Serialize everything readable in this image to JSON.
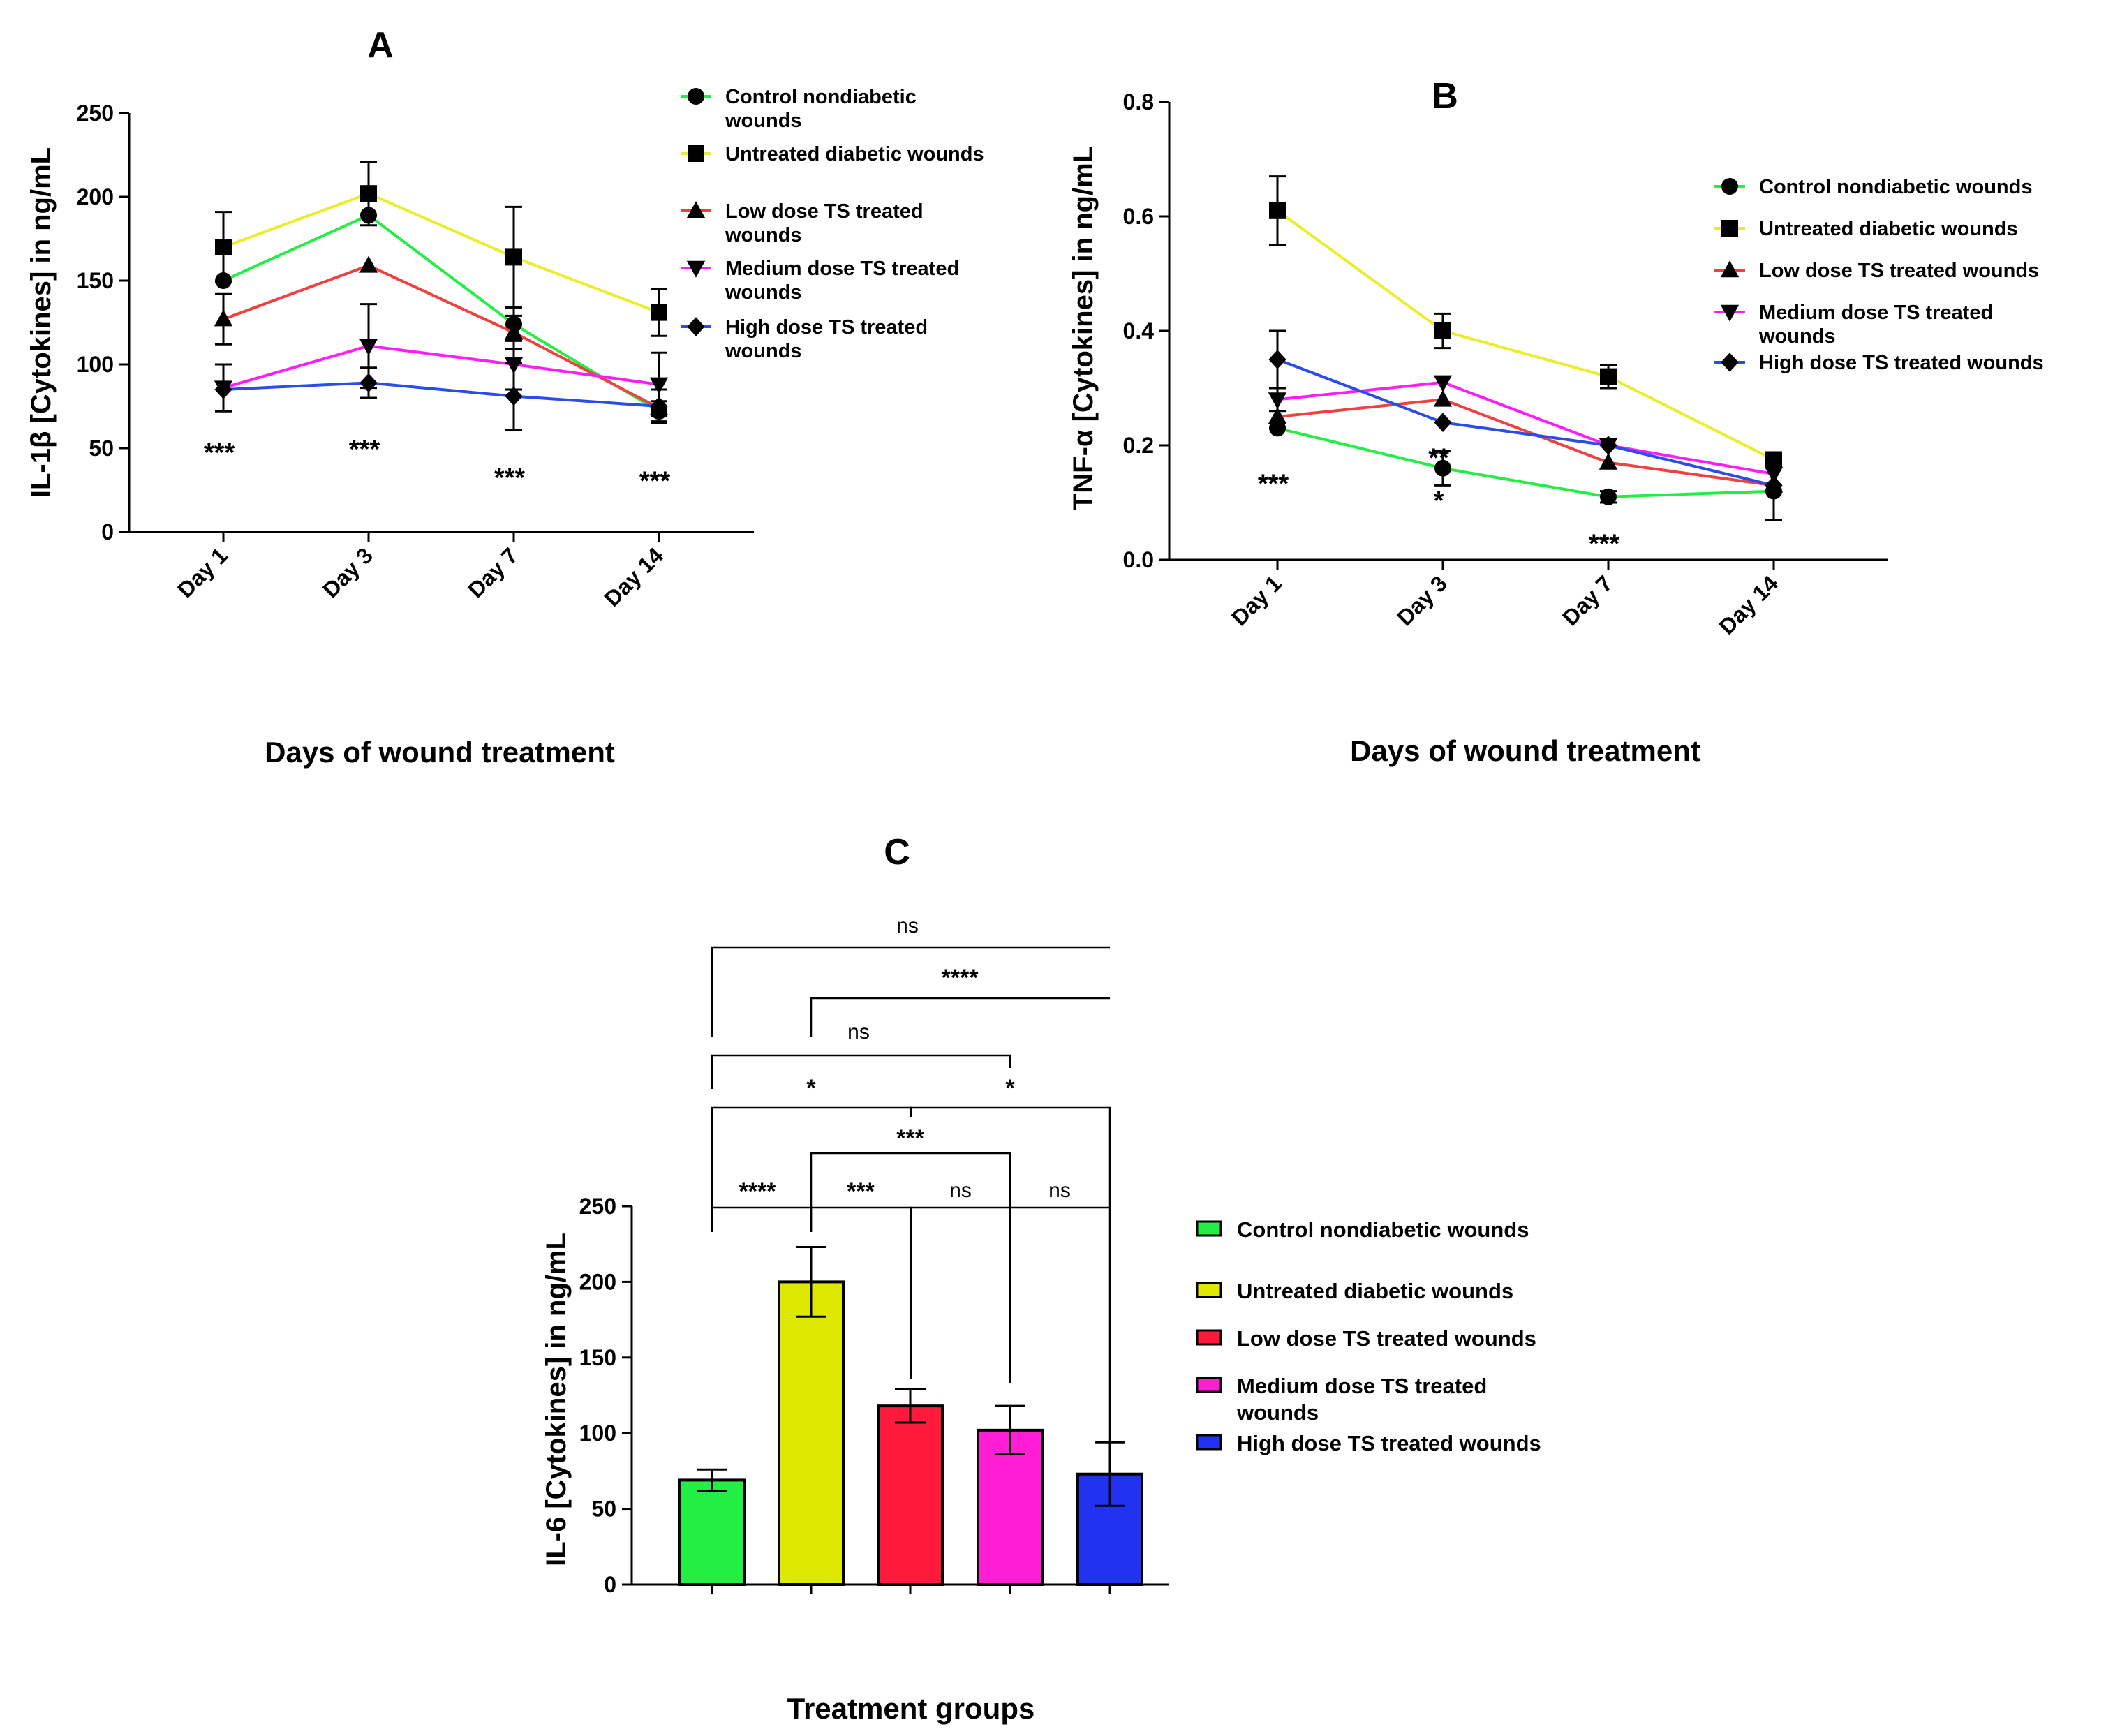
{
  "chart_data": [
    {
      "panel": "A",
      "type": "line",
      "xlabel": "Days of wound treatment",
      "ylabel": "IL-1β [Cytokines] in ng/mL",
      "ylim": [
        0,
        250
      ],
      "yticks": [
        "0",
        "50",
        "100",
        "150",
        "200",
        "250"
      ],
      "categories": [
        "Day 1",
        "Day 3",
        "Day 7",
        "Day 14"
      ],
      "series": [
        {
          "name": "Control nondiabetic wounds",
          "legend_lines": [
            "Control nondiabetic",
            "wounds"
          ],
          "color": "#22ee44",
          "marker": "circle",
          "values": [
            150,
            189,
            124,
            72
          ],
          "errors": [
            0,
            0,
            10,
            6
          ]
        },
        {
          "name": "Untreated diabetic wounds",
          "legend_lines": [
            "Untreated diabetic wounds"
          ],
          "color": "#eaed2a",
          "marker": "square",
          "values": [
            170,
            202,
            164,
            131
          ],
          "errors": [
            21,
            19,
            30,
            14
          ]
        },
        {
          "name": "Low dose TS treated wounds",
          "legend_lines": [
            "Low dose TS treated",
            "wounds"
          ],
          "color": "#f04040",
          "marker": "triangle",
          "values": [
            127,
            159,
            119,
            74
          ],
          "errors": [
            15,
            0,
            10,
            0
          ]
        },
        {
          "name": "Medium dose TS treated wounds",
          "legend_lines": [
            "Medium dose TS treated",
            "wounds"
          ],
          "color": "#ff1dff",
          "marker": "triangle-down",
          "values": [
            86,
            111,
            100,
            88
          ],
          "errors": [
            14,
            25,
            15,
            19
          ]
        },
        {
          "name": "High dose TS treated wounds",
          "legend_lines": [
            "High dose TS treated",
            "wounds"
          ],
          "color": "#2a4de8",
          "marker": "diamond",
          "values": [
            85,
            89,
            81,
            75
          ],
          "errors": [
            0,
            9,
            20,
            10
          ]
        }
      ],
      "annotations": [
        {
          "text": "***",
          "x": "Day 1",
          "y": 48
        },
        {
          "text": "***",
          "x": "Day 3",
          "y": 50
        },
        {
          "text": "***",
          "x": "Day 7",
          "y": 33
        },
        {
          "text": "***",
          "x": "Day 14",
          "y": 31
        }
      ]
    },
    {
      "panel": "B",
      "type": "line",
      "xlabel": "Days of wound treatment",
      "ylabel": "TNF-α [Cytokines] in ng/mL",
      "ylim": [
        0,
        0.8
      ],
      "yticks": [
        "0.0",
        "0.2",
        "0.4",
        "0.6",
        "0.8"
      ],
      "categories": [
        "Day 1",
        "Day 3",
        "Day 7",
        "Day 14"
      ],
      "series": [
        {
          "name": "Control nondiabetic wounds",
          "legend_lines": [
            "Control nondiabetic wounds"
          ],
          "color": "#22ee44",
          "marker": "circle",
          "values": [
            0.23,
            0.16,
            0.11,
            0.12
          ],
          "errors": [
            0,
            0.03,
            0.01,
            0.05
          ]
        },
        {
          "name": "Untreated diabetic wounds",
          "legend_lines": [
            "Untreated diabetic wounds"
          ],
          "color": "#eaed2a",
          "marker": "square",
          "values": [
            0.61,
            0.4,
            0.32,
            0.175
          ],
          "errors": [
            0.06,
            0.03,
            0.02,
            0
          ]
        },
        {
          "name": "Low dose TS treated wounds",
          "legend_lines": [
            "Low dose TS treated wounds"
          ],
          "color": "#f04040",
          "marker": "triangle",
          "values": [
            0.25,
            0.28,
            0.17,
            0.13
          ],
          "errors": [
            0,
            0,
            0,
            0
          ]
        },
        {
          "name": "Medium dose TS treated wounds",
          "legend_lines": [
            "Medium dose TS treated",
            "wounds"
          ],
          "color": "#ff1dff",
          "marker": "triangle-down",
          "values": [
            0.28,
            0.31,
            0.2,
            0.15
          ],
          "errors": [
            0.02,
            0,
            0,
            0
          ]
        },
        {
          "name": "High dose TS treated wounds",
          "legend_lines": [
            "High dose TS treated wounds"
          ],
          "color": "#2a4de8",
          "marker": "diamond",
          "values": [
            0.35,
            0.24,
            0.2,
            0.13
          ],
          "errors": [
            0.05,
            0,
            0,
            0
          ]
        }
      ],
      "annotations": [
        {
          "text": "***",
          "x": "Day 1",
          "y": 0.135
        },
        {
          "text": "**",
          "x": "Day 3",
          "y": 0.18
        },
        {
          "text": "*",
          "x": "Day 3",
          "y": 0.105
        },
        {
          "text": "***",
          "x": "Day 7",
          "y": 0.03
        }
      ]
    },
    {
      "panel": "C",
      "type": "bar",
      "xlabel": "Treatment groups",
      "ylabel": "IL-6 [Cytokines] in ng/mL",
      "ylim": [
        0,
        250
      ],
      "yticks": [
        "0",
        "50",
        "100",
        "150",
        "200",
        "250"
      ],
      "categories": [
        "Control nondiabetic wounds",
        "Untreated diabetic wounds",
        "Low dose TS treated wounds",
        "Medium dose TS treated wounds",
        "High dose TS treated wounds"
      ],
      "legend": [
        {
          "lines": [
            "Control nondiabetic wounds"
          ],
          "color": "#22ee44"
        },
        {
          "lines": [
            "Untreated diabetic wounds"
          ],
          "color": "#dfe800"
        },
        {
          "lines": [
            "Low dose TS treated wounds"
          ],
          "color": "#ff1a3c"
        },
        {
          "lines": [
            "Medium dose TS treated",
            "wounds"
          ],
          "color": "#ff1dd6"
        },
        {
          "lines": [
            "High dose TS treated wounds"
          ],
          "color": "#2233f0"
        }
      ],
      "values": [
        69,
        200,
        118,
        102,
        73
      ],
      "errors": [
        7,
        23,
        11,
        16,
        21
      ],
      "significance": [
        {
          "from": 0,
          "to": 4,
          "label": "ns"
        },
        {
          "from": 1,
          "to": 4,
          "label": "****"
        },
        {
          "from": 0,
          "to": 3,
          "label": "ns"
        },
        {
          "from": 0,
          "to": 2,
          "label": "*"
        },
        {
          "from": 2,
          "to": 4,
          "label": "*"
        },
        {
          "from": 1,
          "to": 3,
          "label": "***"
        },
        {
          "from": 0,
          "to": 1,
          "label": "****"
        },
        {
          "from": 1,
          "to": 2,
          "label": "***"
        },
        {
          "from": 2,
          "to": 3,
          "label": "ns"
        },
        {
          "from": 3,
          "to": 4,
          "label": "ns"
        }
      ]
    }
  ]
}
